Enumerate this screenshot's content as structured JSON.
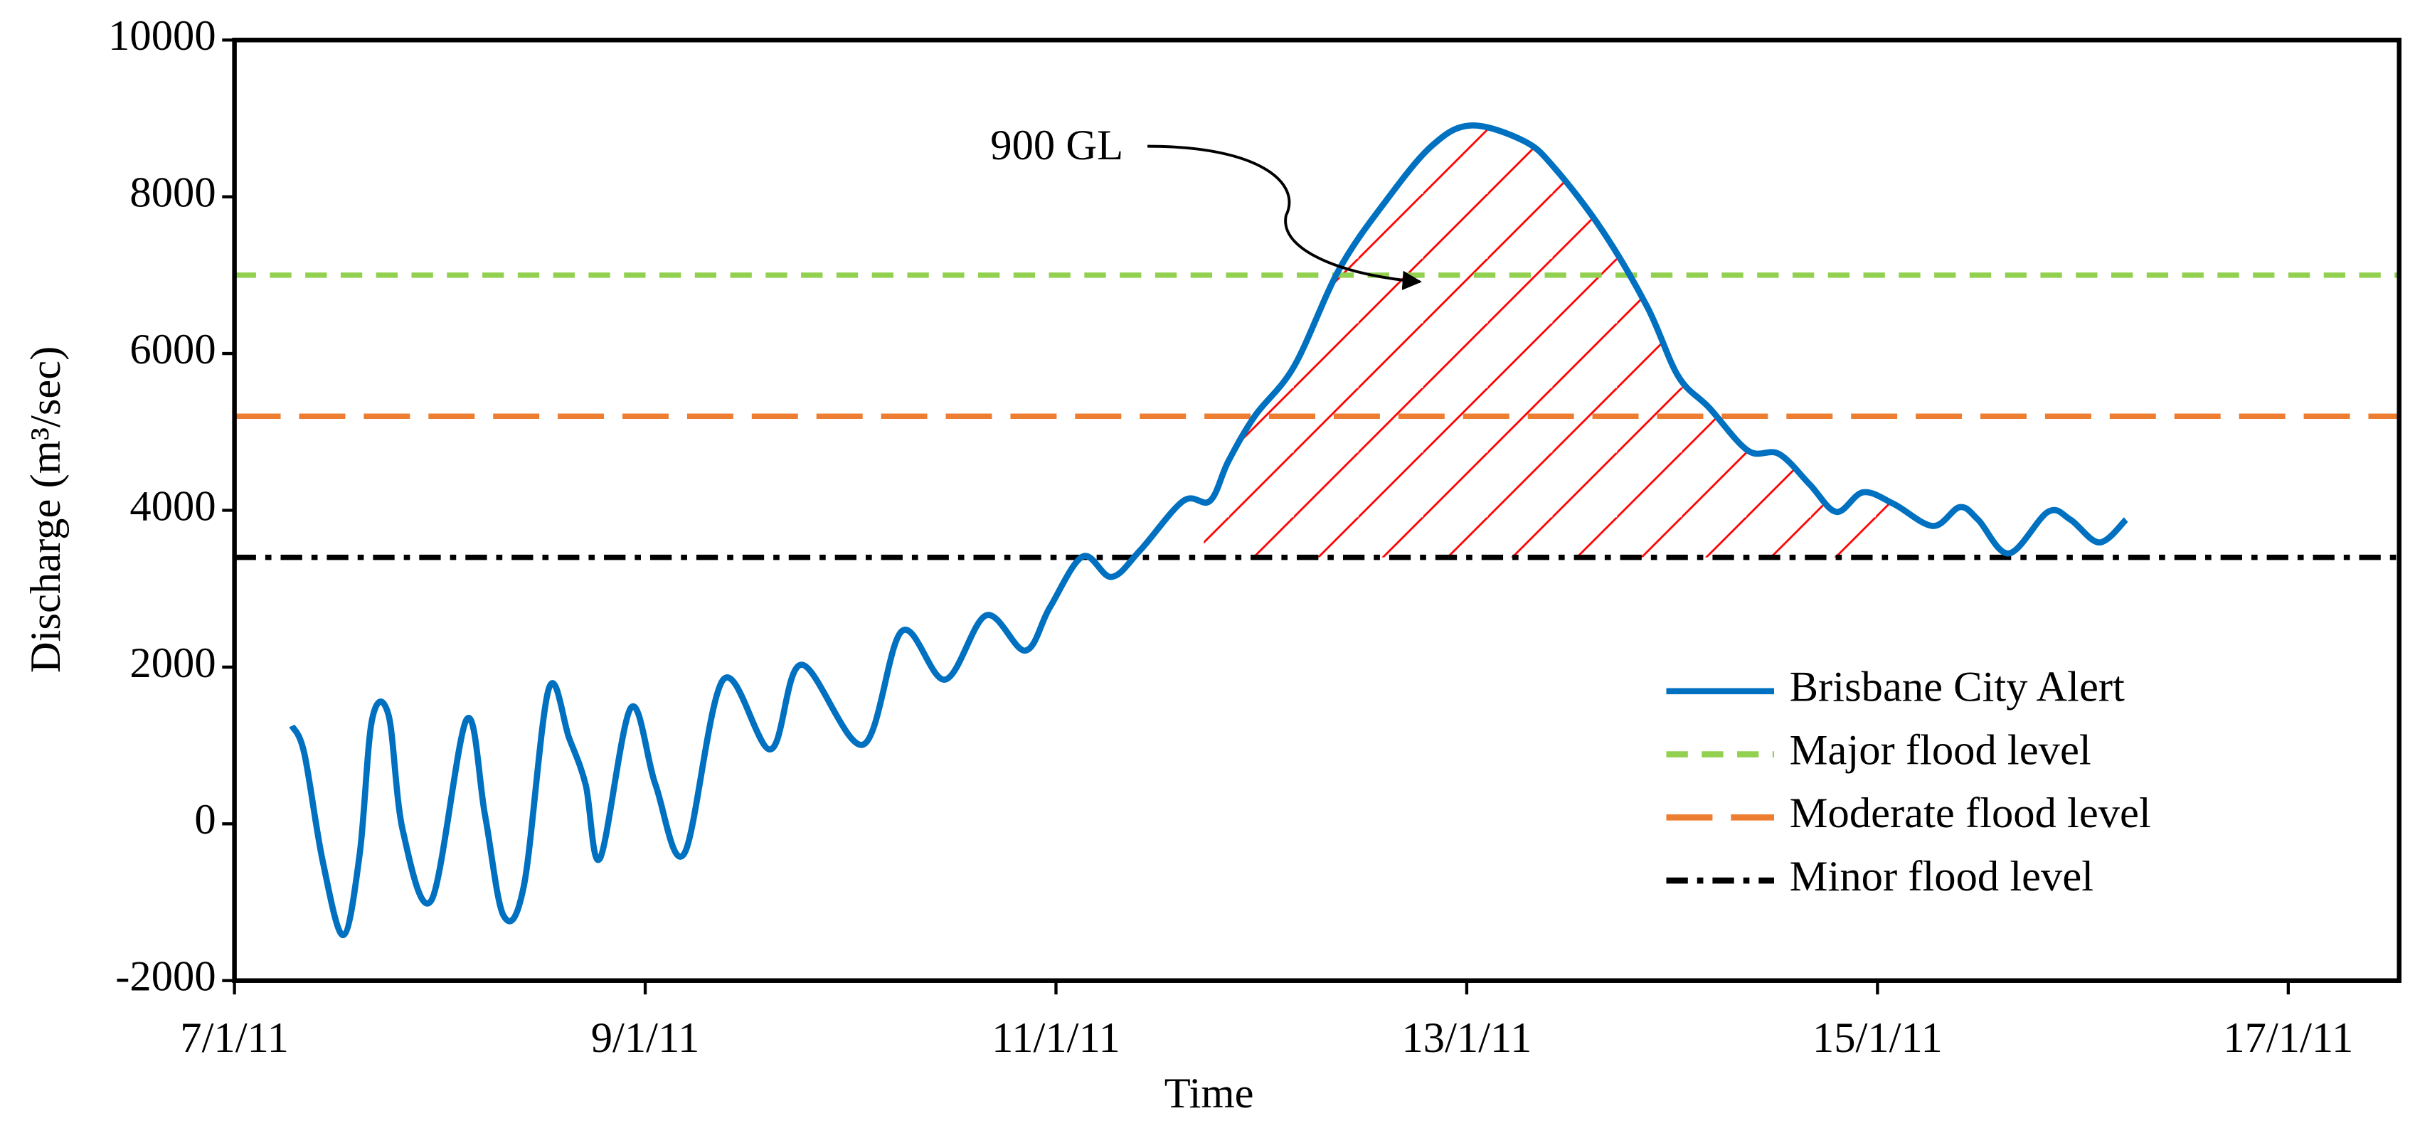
{
  "chart_data": {
    "type": "line",
    "xlabel": "Time",
    "ylabel": "Discharge (m³/sec)",
    "annotation": "900 GL",
    "x": [
      7.28,
      7.34,
      7.43,
      7.53,
      7.61,
      7.67,
      7.75,
      7.82,
      7.96,
      8.13,
      8.22,
      8.31,
      8.41,
      8.53,
      8.63,
      8.71,
      8.78,
      8.93,
      9.05,
      9.19,
      9.38,
      9.61,
      9.76,
      10.06,
      10.25,
      10.46,
      10.66,
      10.85,
      10.97,
      11.13,
      11.27,
      11.41,
      11.62,
      11.75,
      11.84,
      11.97,
      12.16,
      12.38,
      12.61,
      12.83,
      13.02,
      13.28,
      13.43,
      13.66,
      13.88,
      14.03,
      14.18,
      14.37,
      14.52,
      14.67,
      14.8,
      14.93,
      15.08,
      15.27,
      15.4,
      15.49,
      15.64,
      15.83,
      15.94,
      16.08,
      16.21
    ],
    "series": [
      {
        "name": "Brisbane City Alert",
        "color": "#0070c0",
        "values": [
          1250,
          900,
          -480,
          -1420,
          -380,
          1330,
          1390,
          -90,
          -970,
          1330,
          110,
          -1170,
          -780,
          1720,
          1090,
          500,
          -440,
          1480,
          500,
          -380,
          1840,
          950,
          2030,
          1010,
          2460,
          1840,
          2660,
          2210,
          2760,
          3410,
          3150,
          3490,
          4120,
          4120,
          4630,
          5210,
          5840,
          7080,
          7960,
          8650,
          8910,
          8710,
          8360,
          7570,
          6590,
          5710,
          5310,
          4760,
          4720,
          4330,
          3980,
          4230,
          4080,
          3800,
          4040,
          3880,
          3450,
          3980,
          3880,
          3590,
          3880
        ]
      }
    ],
    "thresholds": [
      {
        "name": "Major flood level",
        "value": 7000,
        "color": "#92d050",
        "dash": "14 9"
      },
      {
        "name": "Moderate flood level",
        "value": 5200,
        "color": "#ed7d31",
        "dash": "30 12"
      },
      {
        "name": "Minor flood level",
        "value": 3400,
        "color": "#000000",
        "dash": "14 6 4 6"
      }
    ],
    "shaded_range": [
      11.72,
      15.1
    ],
    "shade_color": "#ff0000",
    "xlim": [
      7,
      17.54
    ],
    "xticks": [
      {
        "value": 7,
        "label": "7/1/11"
      },
      {
        "value": 9,
        "label": "9/1/11"
      },
      {
        "value": 11,
        "label": "11/1/11"
      },
      {
        "value": 13,
        "label": "13/1/11"
      },
      {
        "value": 15,
        "label": "15/1/11"
      },
      {
        "value": 17,
        "label": "17/1/11"
      }
    ],
    "ylim": [
      -2000,
      10000
    ],
    "yticks": [
      -2000,
      0,
      2000,
      4000,
      6000,
      8000,
      10000
    ],
    "legend": "lower right"
  }
}
